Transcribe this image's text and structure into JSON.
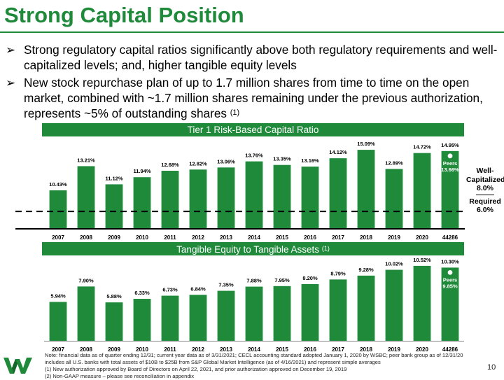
{
  "title": "Strong Capital Position",
  "bullets": [
    {
      "mark": "➢",
      "text": "Strong regulatory capital ratios significantly above both regulatory requirements and well-capitalized levels; and, higher tangible equity levels",
      "sup": ""
    },
    {
      "mark": "➢",
      "text": "New stock repurchase plan of up to 1.7 million shares from time to time on the open market, combined with ~1.7 million shares remaining under the previous authorization, represents ~5% of outstanding shares",
      "sup": "(1)"
    }
  ],
  "chart_data": [
    {
      "type": "bar",
      "title": "Tier 1 Risk-Based Capital Ratio",
      "title_sup": "",
      "categories": [
        "2007",
        "2008",
        "2009",
        "2010",
        "2011",
        "2012",
        "2013",
        "2014",
        "2015",
        "2016",
        "2017",
        "2018",
        "2019",
        "2020",
        "44286"
      ],
      "values": [
        10.43,
        13.21,
        11.12,
        11.94,
        12.68,
        12.82,
        13.06,
        13.76,
        13.35,
        13.16,
        14.12,
        15.09,
        12.89,
        14.72,
        14.95
      ],
      "labels": [
        "10.43%",
        "13.21%",
        "11.12%",
        "11.94%",
        "12.68%",
        "12.82%",
        "13.06%",
        "13.76%",
        "13.35%",
        "13.16%",
        "14.12%",
        "15.09%",
        "12.89%",
        "14.72%",
        "14.95%"
      ],
      "ylim": [
        6.0,
        15.5
      ],
      "bar_color": "#1e8a3a",
      "peers": {
        "label": "Peers",
        "value": 13.66,
        "value_label": "13.66%"
      },
      "reference_lines": [
        {
          "name": "Well-Capitalized",
          "value": 8.0,
          "value_label": "8.0%",
          "style": "dashed"
        },
        {
          "name": "Required",
          "value": 6.0,
          "value_label": "6.0%",
          "style": "solid"
        }
      ],
      "grid": false
    },
    {
      "type": "bar",
      "title": "Tangible Equity to Tangible Assets",
      "title_sup": "(1)",
      "categories": [
        "2007",
        "2008",
        "2009",
        "2010",
        "2011",
        "2012",
        "2013",
        "2014",
        "2015",
        "2016",
        "2017",
        "2018",
        "2019",
        "2020",
        "44286"
      ],
      "values": [
        5.94,
        7.9,
        5.88,
        6.33,
        6.73,
        6.84,
        7.35,
        7.88,
        7.95,
        8.2,
        8.79,
        9.28,
        10.02,
        10.52,
        10.3
      ],
      "labels": [
        "5.94%",
        "7.90%",
        "5.88%",
        "6.33%",
        "6.73%",
        "6.84%",
        "7.35%",
        "7.88%",
        "7.95%",
        "8.20%",
        "8.79%",
        "9.28%",
        "10.02%",
        "10.52%",
        "10.30%"
      ],
      "ylim": [
        1.0,
        10.6
      ],
      "bar_color": "#1e8a3a",
      "peers": {
        "label": "Peers",
        "value": 9.85,
        "value_label": "9.85%"
      },
      "reference_lines": [],
      "grid": false
    }
  ],
  "notes": [
    "Note: financial data as of quarter ending 12/31; current year data as of 3/31/2021; CECL accounting standard adopted January 1, 2020 by WSBC; peer bank group as of 12/31/20",
    "includes all U.S. banks with total assets of $10B to $25B from S&P Global Market Intelligence (as of 4/16/2021) and represent simple averages",
    "(1)    New authorization approved by Board of Directors on April 22, 2021, and prior authorization approved on December 19, 2019",
    "(2)    Non-GAAP measure – please see reconciliation in appendix"
  ],
  "page_number": "10",
  "colors": {
    "brand_green": "#1e8a3a",
    "text": "#000000"
  },
  "logo_icon": "wesbanco-w-logo"
}
